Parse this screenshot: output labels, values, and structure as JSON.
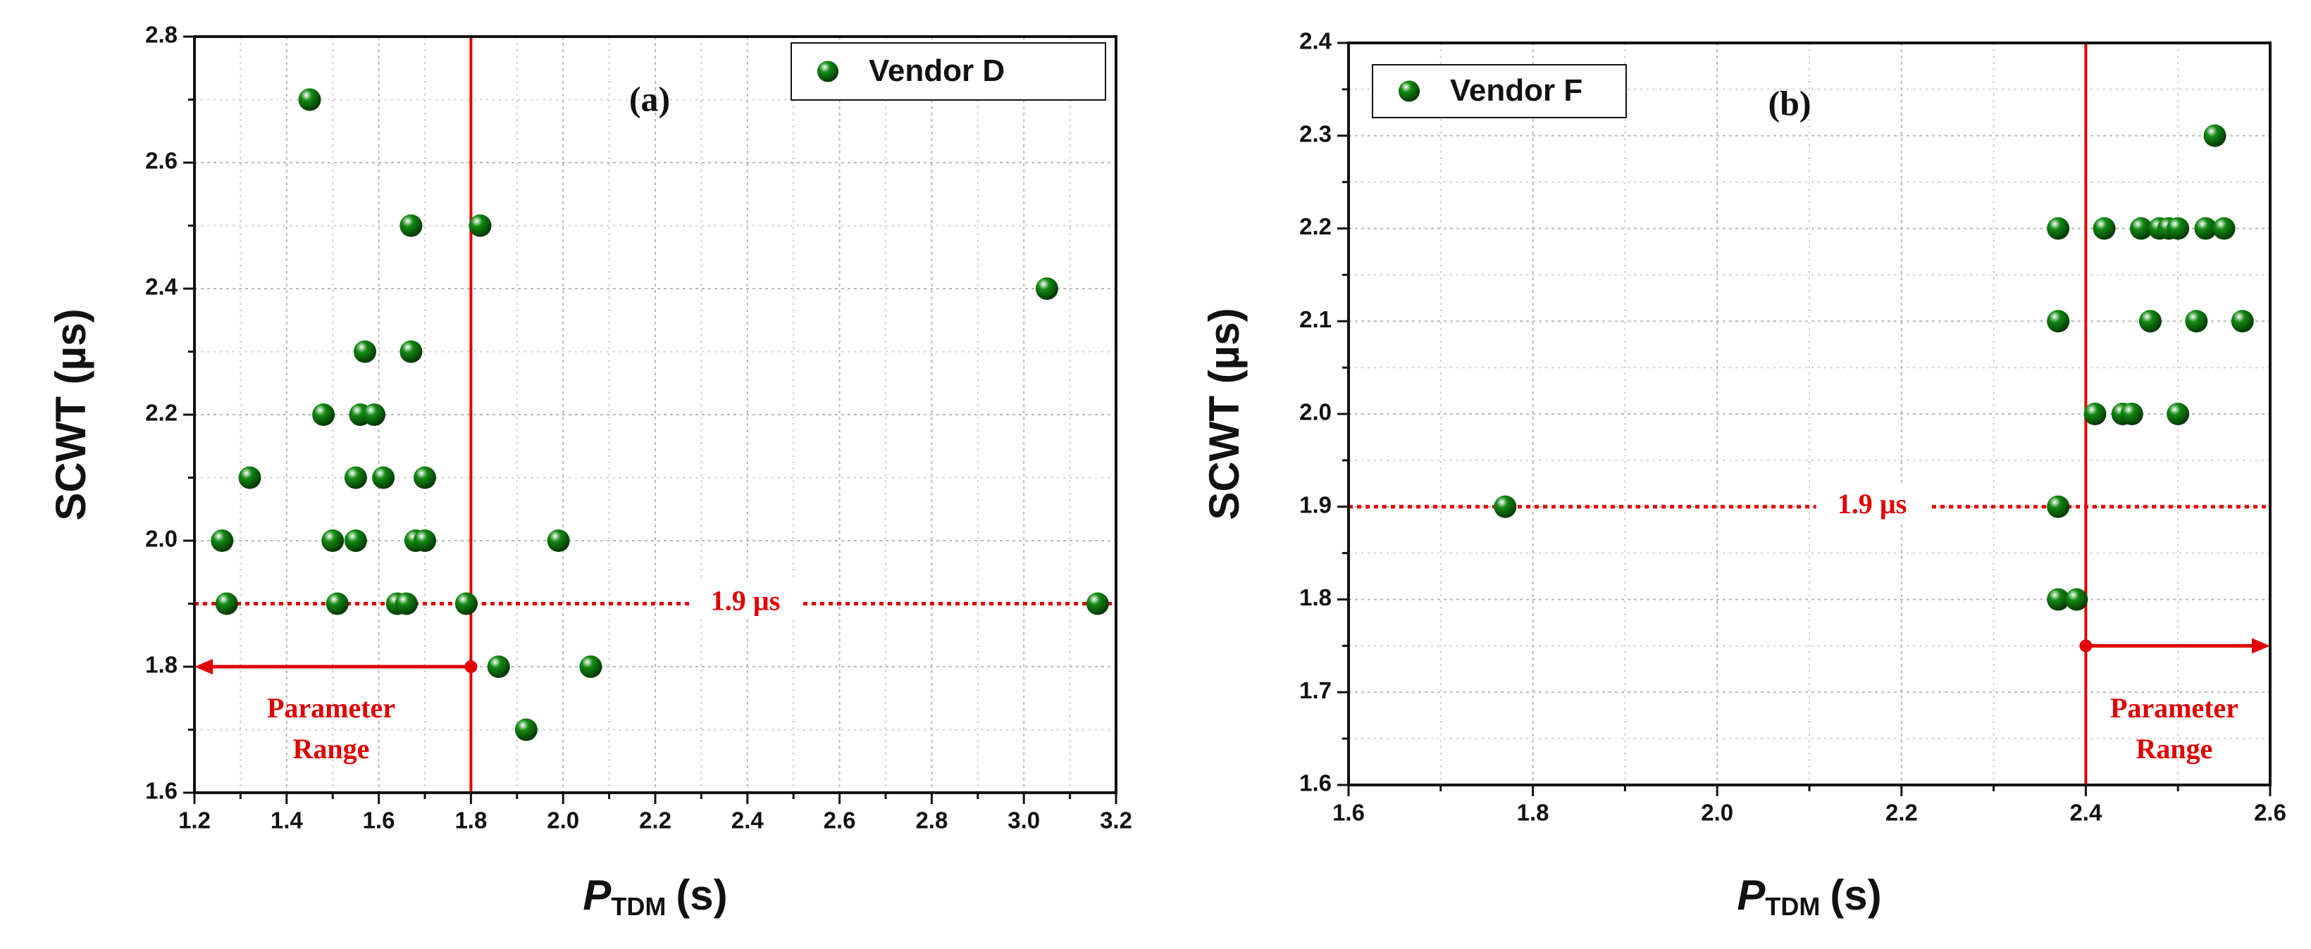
{
  "chart_data": [
    {
      "type": "scatter",
      "panel_label": "(a)",
      "xlabel": "P",
      "xlabel_sub": "TDM",
      "xlabel_unit": "(s)",
      "ylabel": "SCWT (µs)",
      "xlim": [
        1.2,
        3.2
      ],
      "xticks": [
        1.2,
        1.4,
        1.6,
        1.8,
        {
          "value": 2,
          "label": "2.0"
        },
        2.2,
        2.4,
        2.6,
        2.8,
        {
          "value": 3,
          "label": "3.0"
        },
        3.2
      ],
      "ylim": [
        1.6,
        2.8
      ],
      "yticks": [
        1.6,
        1.8,
        {
          "value": 2,
          "label": "2.0"
        },
        2.2,
        2.4,
        2.6,
        2.8
      ],
      "grid": true,
      "legend": "upper right",
      "series": [
        {
          "name": "Vendor D",
          "color": "#138a13",
          "x": [
            1.45,
            1.67,
            1.82,
            3.05,
            1.57,
            1.67,
            1.48,
            1.56,
            1.59,
            1.32,
            1.55,
            1.61,
            1.7,
            1.26,
            1.5,
            1.55,
            1.68,
            1.7,
            1.99,
            1.27,
            1.51,
            1.64,
            1.66,
            1.79,
            3.16,
            1.86,
            2.06,
            1.92
          ],
          "values": [
            2.7,
            2.5,
            2.5,
            2.4,
            2.3,
            2.3,
            2.2,
            2.2,
            2.2,
            2.1,
            2.1,
            2.1,
            2.1,
            2.0,
            2.0,
            2.0,
            2.0,
            2.0,
            2.0,
            1.9,
            1.9,
            1.9,
            1.9,
            1.9,
            1.9,
            1.8,
            1.8,
            1.7
          ]
        }
      ],
      "vline": 1.8,
      "hline": 1.9,
      "hline_label": "1.9 µs",
      "arrow": {
        "y": 1.8,
        "x": [
          1.8,
          1.2
        ]
      },
      "range_label": [
        "Parameter",
        "Range"
      ]
    },
    {
      "type": "scatter",
      "panel_label": "(b)",
      "xlabel": "P",
      "xlabel_sub": "TDM",
      "xlabel_unit": "(s)",
      "ylabel": "SCWT (µs)",
      "xlim": [
        1.6,
        2.6
      ],
      "xticks": [
        1.6,
        1.8,
        {
          "value": 2,
          "label": "2.0"
        },
        2.2,
        2.4,
        2.6
      ],
      "ylim": [
        1.6,
        2.4
      ],
      "yticks": [
        1.6,
        1.7,
        1.8,
        1.9,
        {
          "value": 2,
          "label": "2.0"
        },
        2.1,
        2.2,
        2.3,
        2.4
      ],
      "grid": true,
      "legend": "upper left",
      "series": [
        {
          "name": "Vendor F",
          "color": "#138a13",
          "x": [
            1.77,
            2.37,
            2.37,
            2.39,
            2.37,
            2.42,
            2.46,
            2.48,
            2.49,
            2.5,
            2.53,
            2.55,
            2.54,
            2.37,
            2.47,
            2.52,
            2.57,
            2.41,
            2.44,
            2.45,
            2.5
          ],
          "values": [
            1.9,
            1.9,
            1.8,
            1.8,
            2.2,
            2.2,
            2.2,
            2.2,
            2.2,
            2.2,
            2.2,
            2.2,
            2.3,
            2.1,
            2.1,
            2.1,
            2.1,
            2.0,
            2.0,
            2.0,
            2.0
          ]
        }
      ],
      "vline": 2.4,
      "hline": 1.9,
      "hline_label": "1.9 µs",
      "arrow": {
        "y": 1.75,
        "x": [
          2.4,
          2.6
        ]
      },
      "range_label": [
        "Parameter",
        "Range"
      ]
    }
  ]
}
